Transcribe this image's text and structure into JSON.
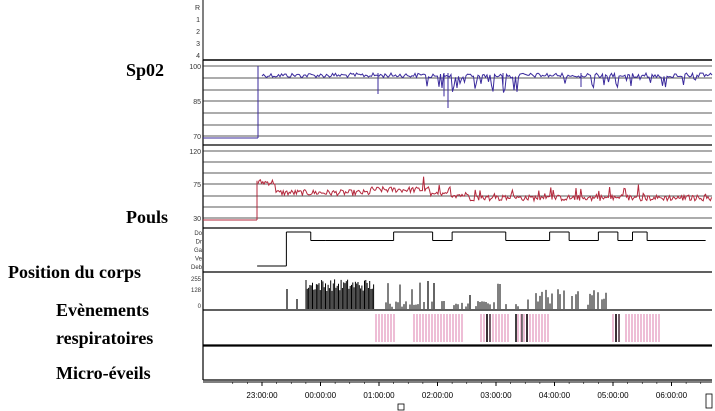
{
  "labels": {
    "spo2": "Sp02",
    "pouls": "Pouls",
    "position": "Position du corps",
    "events_line1": "Evènements",
    "events_line2": "respiratoires",
    "micro": "Micro-éveils"
  },
  "colors": {
    "spo2": "#3a2a9c",
    "pouls": "#b4283c",
    "events": "#e8a8c8",
    "ink": "#000000",
    "grid": "#222222"
  },
  "chart_data": {
    "type": "line",
    "time_ticks": [
      "23:00:00",
      "00:00:00",
      "01:00:00",
      "02:00:00",
      "03:00:00",
      "04:00:00",
      "05:00:00",
      "06:00:00"
    ],
    "top_panel_ticks": [
      "R",
      "1",
      "2",
      "3",
      "4"
    ],
    "panels": [
      {
        "name": "Sp02",
        "ticks": [
          "100",
          "85",
          "70"
        ],
        "ylim": [
          70,
          100
        ],
        "baseline": 97,
        "noise": 4
      },
      {
        "name": "Pouls",
        "ticks": [
          "120",
          "75",
          "30"
        ],
        "ylim": [
          30,
          120
        ],
        "baseline": 60,
        "noise": 8
      },
      {
        "name": "Position du corps",
        "ticks": [
          "Do",
          "Dr",
          "Ga",
          "Ve",
          "Deb"
        ],
        "segments": [
          {
            "start": "22:55",
            "end": "23:25",
            "level": "Deb"
          },
          {
            "start": "23:25",
            "end": "23:50",
            "level": "Do"
          },
          {
            "start": "23:50",
            "end": "00:05",
            "level": "Dr"
          },
          {
            "start": "00:05",
            "end": "01:15",
            "level": "Dr"
          },
          {
            "start": "01:15",
            "end": "01:55",
            "level": "Do"
          },
          {
            "start": "01:55",
            "end": "02:15",
            "level": "Dr"
          },
          {
            "start": "02:15",
            "end": "03:10",
            "level": "Do"
          },
          {
            "start": "03:10",
            "end": "03:55",
            "level": "Dr"
          },
          {
            "start": "03:55",
            "end": "04:15",
            "level": "Do"
          },
          {
            "start": "04:15",
            "end": "04:45",
            "level": "Dr"
          },
          {
            "start": "04:45",
            "end": "05:05",
            "level": "Do"
          },
          {
            "start": "05:05",
            "end": "05:20",
            "level": "Dr"
          },
          {
            "start": "05:20",
            "end": "05:35",
            "level": "Do"
          },
          {
            "start": "05:35",
            "end": "06:35",
            "level": "Dr"
          }
        ]
      },
      {
        "name": "Evènements respiratoires",
        "ticks": [
          "255",
          "128",
          "0"
        ]
      },
      {
        "name": "Micro-éveils",
        "ticks": []
      }
    ]
  }
}
